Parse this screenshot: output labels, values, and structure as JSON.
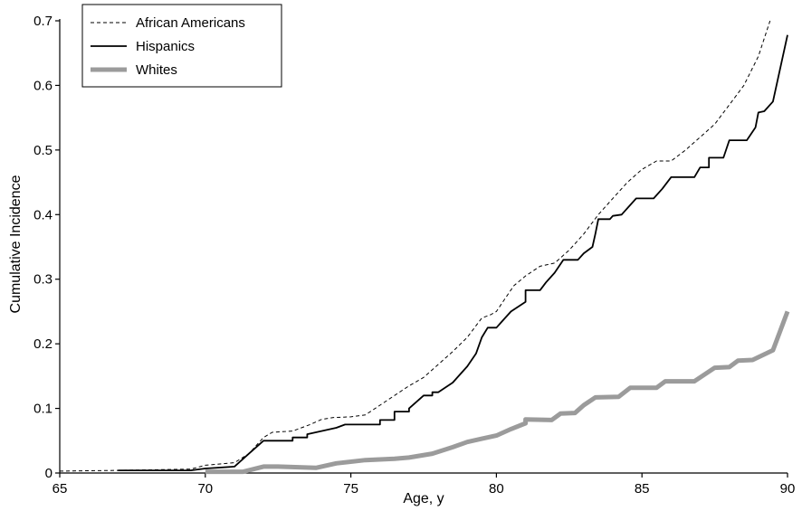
{
  "chart_data": {
    "type": "line",
    "xlabel": "Age, y",
    "ylabel": "Cumulative Incidence",
    "xlim": [
      65,
      90
    ],
    "ylim": [
      0,
      0.7
    ],
    "x_ticks": [
      65,
      70,
      75,
      80,
      85,
      90
    ],
    "x_tick_labels": [
      "65",
      "70",
      "75",
      "80",
      "85",
      "90"
    ],
    "y_ticks": [
      0,
      0.1,
      0.2,
      0.3,
      0.4,
      0.5,
      0.6,
      0.7
    ],
    "y_tick_labels": [
      "0",
      "0.1",
      "0.2",
      "0.3",
      "0.4",
      "0.5",
      "0.6",
      "0.7"
    ],
    "grid": false,
    "legend_position": "top-left",
    "series": [
      {
        "name": "African Americans",
        "style": "dashed",
        "color": "#000000",
        "points": [
          [
            65.0,
            0.003
          ],
          [
            67.0,
            0.004
          ],
          [
            69.5,
            0.006
          ],
          [
            70.0,
            0.012
          ],
          [
            71.0,
            0.016
          ],
          [
            71.5,
            0.03
          ],
          [
            72.0,
            0.055
          ],
          [
            72.3,
            0.063
          ],
          [
            73.0,
            0.065
          ],
          [
            73.6,
            0.075
          ],
          [
            74.0,
            0.083
          ],
          [
            74.4,
            0.086
          ],
          [
            75.0,
            0.087
          ],
          [
            75.5,
            0.09
          ],
          [
            76.0,
            0.105
          ],
          [
            76.5,
            0.12
          ],
          [
            77.0,
            0.135
          ],
          [
            77.5,
            0.148
          ],
          [
            78.0,
            0.168
          ],
          [
            78.5,
            0.188
          ],
          [
            79.0,
            0.21
          ],
          [
            79.3,
            0.228
          ],
          [
            79.5,
            0.24
          ],
          [
            79.8,
            0.245
          ],
          [
            80.0,
            0.25
          ],
          [
            80.3,
            0.27
          ],
          [
            80.6,
            0.29
          ],
          [
            81.0,
            0.305
          ],
          [
            81.5,
            0.32
          ],
          [
            82.0,
            0.325
          ],
          [
            82.5,
            0.345
          ],
          [
            83.0,
            0.37
          ],
          [
            83.5,
            0.4
          ],
          [
            84.0,
            0.425
          ],
          [
            84.5,
            0.45
          ],
          [
            85.0,
            0.47
          ],
          [
            85.5,
            0.483
          ],
          [
            86.0,
            0.483
          ],
          [
            86.5,
            0.5
          ],
          [
            87.0,
            0.52
          ],
          [
            87.5,
            0.54
          ],
          [
            88.0,
            0.57
          ],
          [
            88.5,
            0.6
          ],
          [
            89.0,
            0.645
          ],
          [
            89.4,
            0.7
          ]
        ]
      },
      {
        "name": "Hispanics",
        "style": "solid",
        "color": "#000000",
        "points": [
          [
            67.0,
            0.004
          ],
          [
            69.5,
            0.004
          ],
          [
            70.0,
            0.007
          ],
          [
            71.0,
            0.01
          ],
          [
            71.5,
            0.03
          ],
          [
            72.0,
            0.05
          ],
          [
            72.2,
            0.05
          ],
          [
            73.0,
            0.05
          ],
          [
            73.0,
            0.055
          ],
          [
            73.5,
            0.055
          ],
          [
            73.5,
            0.06
          ],
          [
            74.5,
            0.07
          ],
          [
            74.8,
            0.075
          ],
          [
            76.0,
            0.075
          ],
          [
            76.0,
            0.082
          ],
          [
            76.5,
            0.082
          ],
          [
            76.5,
            0.095
          ],
          [
            77.0,
            0.095
          ],
          [
            77.0,
            0.1
          ],
          [
            77.5,
            0.12
          ],
          [
            77.8,
            0.12
          ],
          [
            77.8,
            0.125
          ],
          [
            78.0,
            0.125
          ],
          [
            78.5,
            0.14
          ],
          [
            79.0,
            0.165
          ],
          [
            79.3,
            0.185
          ],
          [
            79.5,
            0.21
          ],
          [
            79.7,
            0.225
          ],
          [
            80.0,
            0.225
          ],
          [
            80.2,
            0.235
          ],
          [
            80.5,
            0.25
          ],
          [
            81.0,
            0.265
          ],
          [
            81.0,
            0.283
          ],
          [
            81.5,
            0.283
          ],
          [
            81.7,
            0.295
          ],
          [
            82.0,
            0.31
          ],
          [
            82.3,
            0.33
          ],
          [
            82.8,
            0.33
          ],
          [
            83.0,
            0.34
          ],
          [
            83.3,
            0.35
          ],
          [
            83.4,
            0.37
          ],
          [
            83.5,
            0.393
          ],
          [
            83.9,
            0.393
          ],
          [
            84.0,
            0.398
          ],
          [
            84.3,
            0.4
          ],
          [
            84.8,
            0.425
          ],
          [
            85.4,
            0.425
          ],
          [
            85.7,
            0.44
          ],
          [
            86.0,
            0.458
          ],
          [
            86.8,
            0.458
          ],
          [
            87.0,
            0.473
          ],
          [
            87.3,
            0.473
          ],
          [
            87.3,
            0.488
          ],
          [
            87.8,
            0.488
          ],
          [
            88.0,
            0.515
          ],
          [
            88.6,
            0.515
          ],
          [
            88.9,
            0.535
          ],
          [
            89.0,
            0.558
          ],
          [
            89.2,
            0.56
          ],
          [
            89.5,
            0.575
          ],
          [
            90.0,
            0.678
          ]
        ]
      },
      {
        "name": "Whites",
        "style": "thick",
        "color": "#9b9b9b",
        "points": [
          [
            70.0,
            0.002
          ],
          [
            71.3,
            0.002
          ],
          [
            72.0,
            0.01
          ],
          [
            72.5,
            0.01
          ],
          [
            73.8,
            0.008
          ],
          [
            74.5,
            0.015
          ],
          [
            75.5,
            0.02
          ],
          [
            76.5,
            0.022
          ],
          [
            77.0,
            0.024
          ],
          [
            77.8,
            0.03
          ],
          [
            78.5,
            0.04
          ],
          [
            79.0,
            0.048
          ],
          [
            79.5,
            0.053
          ],
          [
            80.0,
            0.058
          ],
          [
            80.5,
            0.068
          ],
          [
            81.0,
            0.077
          ],
          [
            81.0,
            0.083
          ],
          [
            81.9,
            0.082
          ],
          [
            82.2,
            0.092
          ],
          [
            82.7,
            0.093
          ],
          [
            83.0,
            0.105
          ],
          [
            83.4,
            0.117
          ],
          [
            84.2,
            0.118
          ],
          [
            84.6,
            0.132
          ],
          [
            85.5,
            0.132
          ],
          [
            85.8,
            0.142
          ],
          [
            86.8,
            0.142
          ],
          [
            87.5,
            0.163
          ],
          [
            88.0,
            0.164
          ],
          [
            88.3,
            0.174
          ],
          [
            88.8,
            0.175
          ],
          [
            89.5,
            0.19
          ],
          [
            90.0,
            0.25
          ]
        ]
      }
    ]
  }
}
